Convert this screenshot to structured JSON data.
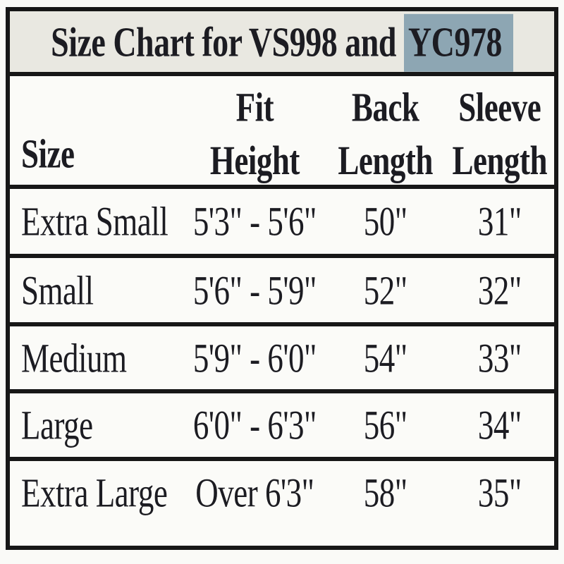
{
  "title": {
    "prefix": "Size Chart for VS998 and ",
    "highlight": "YC978"
  },
  "columns": [
    {
      "line1": "",
      "line2": "Size"
    },
    {
      "line1": "Fit",
      "line2": "Height"
    },
    {
      "line1": "Back",
      "line2": "Length"
    },
    {
      "line1": "Sleeve",
      "line2": "Length"
    }
  ],
  "rows": [
    {
      "size": "Extra Small",
      "fit_height": "5'3\" - 5'6\"",
      "back_length": "50\"",
      "sleeve_length": "31\""
    },
    {
      "size": "Small",
      "fit_height": "5'6\" - 5'9\"",
      "back_length": "52\"",
      "sleeve_length": "32\""
    },
    {
      "size": "Medium",
      "fit_height": "5'9\" - 6'0\"",
      "back_length": "54\"",
      "sleeve_length": "33\""
    },
    {
      "size": "Large",
      "fit_height": "6'0\" - 6'3\"",
      "back_length": "56\"",
      "sleeve_length": "34\""
    },
    {
      "size": "Extra Large",
      "fit_height": "Over 6'3\"",
      "back_length": "58\"",
      "sleeve_length": "35\""
    }
  ],
  "colors": {
    "highlight_bg": "#8da6b3",
    "title_bg": "#e9e8e1",
    "border": "#171717",
    "body_bg": "#fbfbf8"
  }
}
